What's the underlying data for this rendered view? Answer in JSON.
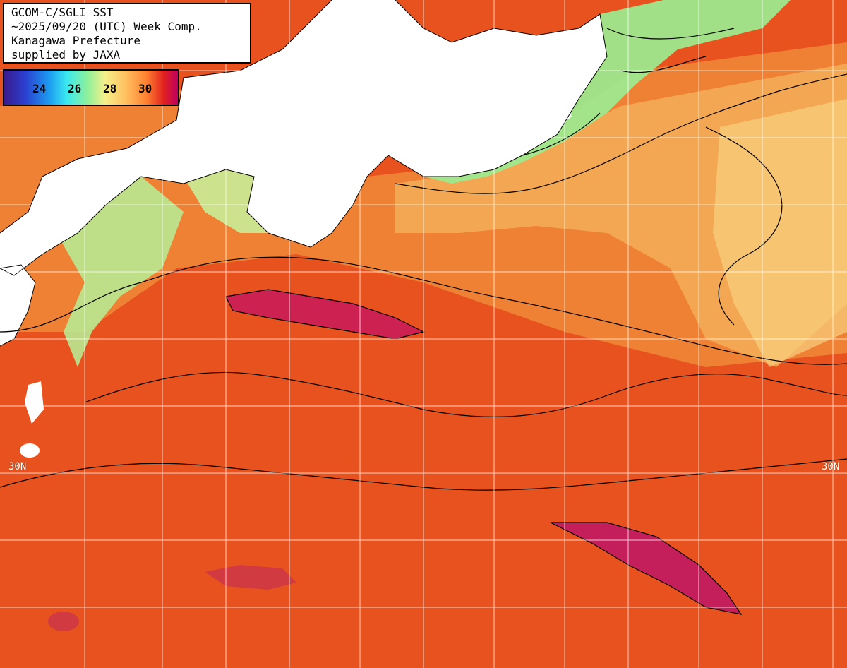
{
  "title": {
    "line1": "GCOM-C/SGLI SST",
    "line2": "~2025/09/20 (UTC) Week Comp.",
    "line3": "Kanagawa Prefecture",
    "line4": "supplied by JAXA"
  },
  "legend": {
    "ticks": [
      "24",
      "26",
      "28",
      "30"
    ]
  },
  "grid": {
    "lat_labels": [
      "30N",
      "30N"
    ]
  },
  "colors": {
    "sea_warm": "#e8501c",
    "sea_hot": "#c02060",
    "sea_mild": "#f4a050",
    "sea_cool": "#9ef08c",
    "land": "#ffffff"
  }
}
